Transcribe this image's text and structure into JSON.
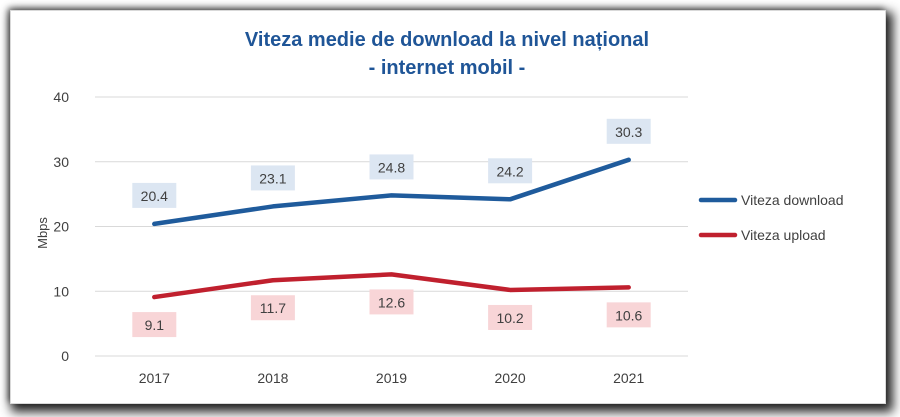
{
  "chart_data": {
    "type": "line",
    "title": [
      "Viteza medie de download la nivel național",
      "- internet mobil -"
    ],
    "ylabel": "Mbps",
    "xlabel": "",
    "categories": [
      "2017",
      "2018",
      "2019",
      "2020",
      "2021"
    ],
    "ylim": [
      0,
      40
    ],
    "yticks": [
      "0",
      "10",
      "20",
      "30",
      "40"
    ],
    "grid": true,
    "legend_position": "right",
    "series": [
      {
        "name": "Viteza download",
        "values": [
          20.4,
          23.1,
          24.8,
          24.2,
          30.3
        ],
        "labels": [
          "20.4",
          "23.1",
          "24.8",
          "24.2",
          "30.3"
        ],
        "color": "#1f5b9c",
        "label_bg": "#dce6f2",
        "label_position": "above"
      },
      {
        "name": "Viteza upload",
        "values": [
          9.1,
          11.7,
          12.6,
          10.2,
          10.6
        ],
        "labels": [
          "9.1",
          "11.7",
          "12.6",
          "10.2",
          "10.6"
        ],
        "color": "#c0202e",
        "label_bg": "#f8d5d7",
        "label_position": "below"
      }
    ]
  },
  "colors": {
    "title": "#1f5597",
    "grid": "#d9d9d9",
    "text": "#404040"
  }
}
